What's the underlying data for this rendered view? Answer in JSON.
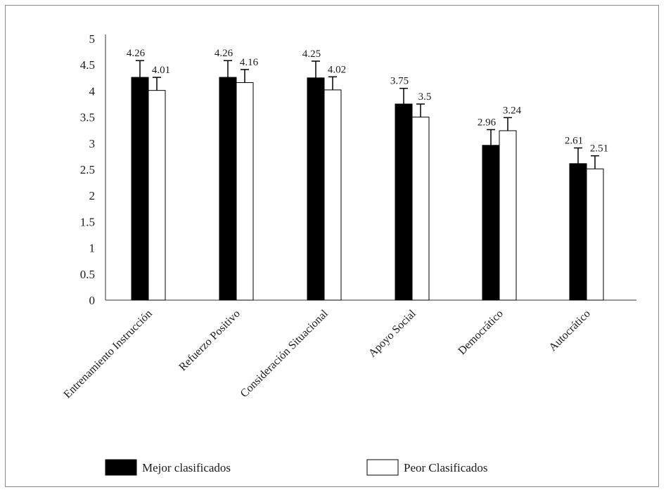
{
  "chart_data": {
    "type": "bar",
    "title": "",
    "xlabel": "",
    "ylabel": "",
    "ylim": [
      0,
      5
    ],
    "yticks": [
      "0",
      "0.5",
      "1",
      "1.5",
      "2",
      "2.5",
      "3",
      "3.5",
      "4",
      "4.5",
      "5"
    ],
    "categories": [
      "Entrenamiento Instrucción",
      "Refuerzo Positivo",
      "Consideración Situacional",
      "Apoyo Social",
      "Democrático",
      "Autocrático"
    ],
    "series": [
      {
        "name": "Mejor clasificados",
        "color": "#000000",
        "values": [
          4.26,
          4.26,
          4.25,
          3.75,
          2.96,
          2.61
        ],
        "labels": [
          "4.26",
          "4.26",
          "4.25",
          "3.75",
          "2.96",
          "2.61"
        ],
        "error": [
          0.32,
          0.32,
          0.32,
          0.3,
          0.3,
          0.3
        ]
      },
      {
        "name": "Peor Clasificados",
        "color": "#ffffff",
        "values": [
          4.01,
          4.16,
          4.02,
          3.5,
          3.24,
          2.51
        ],
        "labels": [
          "4.01",
          "4.16",
          "4.02",
          "3.5",
          "3.24",
          "2.51"
        ],
        "error": [
          0.25,
          0.25,
          0.25,
          0.25,
          0.25,
          0.25
        ]
      }
    ],
    "grid": false,
    "legend": "bottom"
  }
}
